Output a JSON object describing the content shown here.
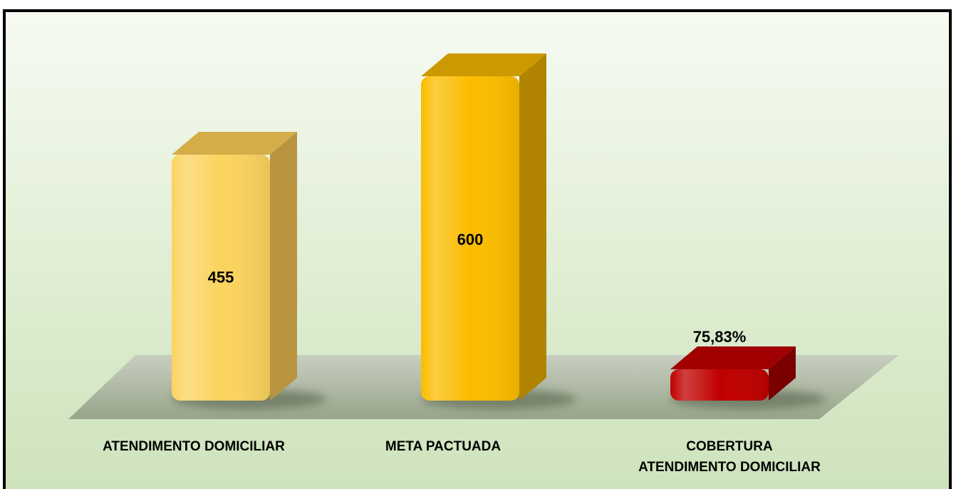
{
  "chart_data": {
    "type": "bar",
    "categories": [
      [
        "ATENDIMENTO DOMICILIAR"
      ],
      [
        "META PACTUADA"
      ],
      [
        "COBERTURA",
        "ATENDIMENTO DOMICILIAR"
      ]
    ],
    "values": [
      455,
      600,
      75.83
    ],
    "units": [
      "",
      "",
      "%"
    ],
    "data_labels": [
      "455",
      "600",
      "75,83%"
    ],
    "ylim": [
      0,
      600
    ],
    "grid": false,
    "legend": "none",
    "bar_colors": [
      {
        "front": "#fbd35e",
        "side": "#b89440",
        "top": "#d4ad48"
      },
      {
        "front": "#fbbc00",
        "side": "#b08400",
        "top": "#cc9a00"
      },
      {
        "front": "#c00000",
        "side": "#7a0000",
        "top": "#a00000"
      }
    ],
    "floor_color": "#a8b49a",
    "note_third_bar_scale": "percentage value drawn on the same baseline as a short bar"
  }
}
